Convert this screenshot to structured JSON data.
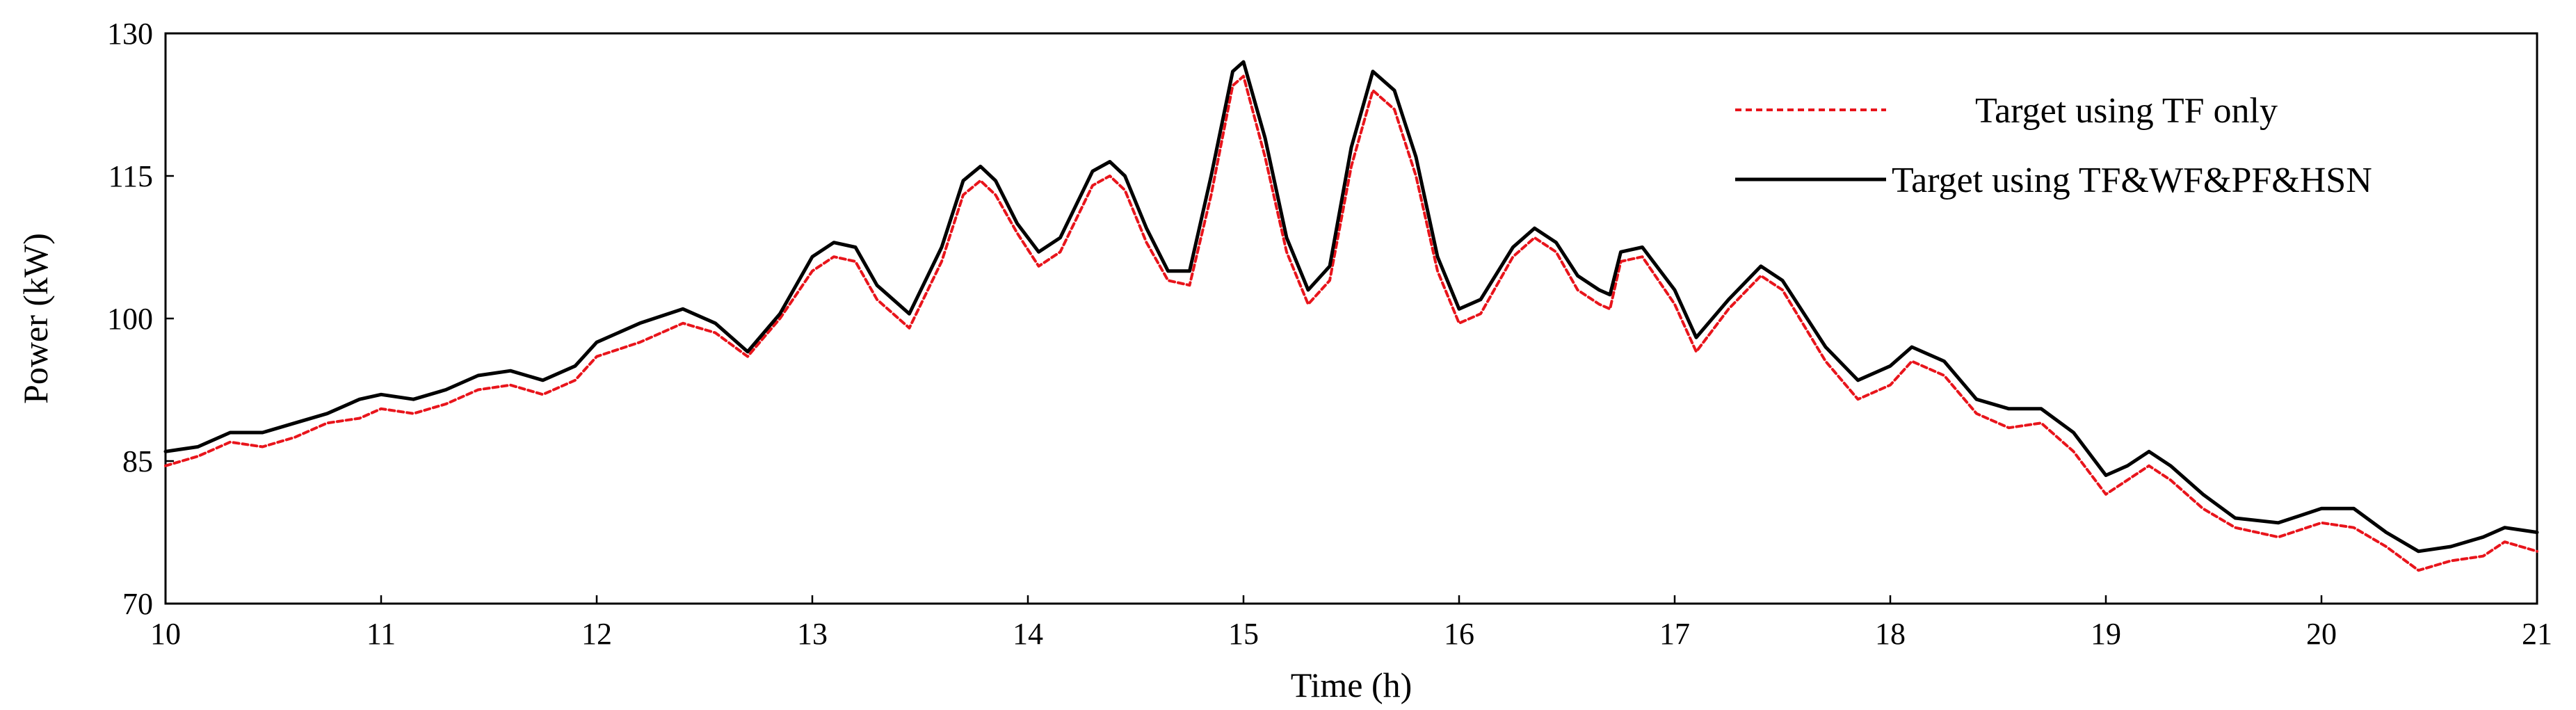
{
  "chart_data": {
    "type": "line",
    "title": "",
    "xlabel": "Time (h)",
    "ylabel": "Power (kW)",
    "xlim": [
      10,
      21
    ],
    "ylim": [
      70,
      130
    ],
    "xticks": [
      10,
      11,
      12,
      13,
      14,
      15,
      16,
      17,
      18,
      19,
      20,
      21
    ],
    "yticks": [
      70,
      85,
      100,
      115,
      130
    ],
    "grid": false,
    "legend_position": "top-right",
    "series": [
      {
        "name": "Target using TF only",
        "color": "#e8141b",
        "style": "dotted",
        "points": [
          [
            10.0,
            84.5
          ],
          [
            10.15,
            85.5
          ],
          [
            10.3,
            87.0
          ],
          [
            10.45,
            86.5
          ],
          [
            10.6,
            87.5
          ],
          [
            10.75,
            89.0
          ],
          [
            10.9,
            89.5
          ],
          [
            11.0,
            90.5
          ],
          [
            11.15,
            90.0
          ],
          [
            11.3,
            91.0
          ],
          [
            11.45,
            92.5
          ],
          [
            11.6,
            93.0
          ],
          [
            11.75,
            92.0
          ],
          [
            11.9,
            93.5
          ],
          [
            12.0,
            96.0
          ],
          [
            12.2,
            97.5
          ],
          [
            12.4,
            99.5
          ],
          [
            12.55,
            98.5
          ],
          [
            12.7,
            96.0
          ],
          [
            12.85,
            100.0
          ],
          [
            13.0,
            105.0
          ],
          [
            13.1,
            106.5
          ],
          [
            13.2,
            106.0
          ],
          [
            13.3,
            102.0
          ],
          [
            13.45,
            99.0
          ],
          [
            13.6,
            106.0
          ],
          [
            13.7,
            113.0
          ],
          [
            13.78,
            114.5
          ],
          [
            13.85,
            113.0
          ],
          [
            13.95,
            109.0
          ],
          [
            14.05,
            105.5
          ],
          [
            14.15,
            107.0
          ],
          [
            14.3,
            114.0
          ],
          [
            14.38,
            115.0
          ],
          [
            14.45,
            113.5
          ],
          [
            14.55,
            108.0
          ],
          [
            14.65,
            104.0
          ],
          [
            14.75,
            103.5
          ],
          [
            14.85,
            113.0
          ],
          [
            14.95,
            124.5
          ],
          [
            15.0,
            125.5
          ],
          [
            15.1,
            117.0
          ],
          [
            15.2,
            107.0
          ],
          [
            15.3,
            101.5
          ],
          [
            15.4,
            104.0
          ],
          [
            15.5,
            116.0
          ],
          [
            15.6,
            124.0
          ],
          [
            15.7,
            122.0
          ],
          [
            15.8,
            115.0
          ],
          [
            15.9,
            105.0
          ],
          [
            16.0,
            99.5
          ],
          [
            16.1,
            100.5
          ],
          [
            16.25,
            106.5
          ],
          [
            16.35,
            108.5
          ],
          [
            16.45,
            107.0
          ],
          [
            16.55,
            103.0
          ],
          [
            16.65,
            101.5
          ],
          [
            16.7,
            101.0
          ],
          [
            16.75,
            106.0
          ],
          [
            16.85,
            106.5
          ],
          [
            17.0,
            101.5
          ],
          [
            17.1,
            96.5
          ],
          [
            17.25,
            101.0
          ],
          [
            17.4,
            104.5
          ],
          [
            17.5,
            103.0
          ],
          [
            17.7,
            95.5
          ],
          [
            17.85,
            91.5
          ],
          [
            18.0,
            93.0
          ],
          [
            18.1,
            95.5
          ],
          [
            18.25,
            94.0
          ],
          [
            18.4,
            90.0
          ],
          [
            18.55,
            88.5
          ],
          [
            18.7,
            89.0
          ],
          [
            18.85,
            86.0
          ],
          [
            19.0,
            81.5
          ],
          [
            19.1,
            83.0
          ],
          [
            19.2,
            84.5
          ],
          [
            19.3,
            83.0
          ],
          [
            19.45,
            80.0
          ],
          [
            19.6,
            78.0
          ],
          [
            19.8,
            77.0
          ],
          [
            20.0,
            78.5
          ],
          [
            20.15,
            78.0
          ],
          [
            20.3,
            76.0
          ],
          [
            20.45,
            73.5
          ],
          [
            20.6,
            74.5
          ],
          [
            20.75,
            75.0
          ],
          [
            20.85,
            76.5
          ],
          [
            21.0,
            75.5
          ]
        ]
      },
      {
        "name": "Target using TF&WF&PF&HSN",
        "color": "#000000",
        "style": "solid",
        "points": [
          [
            10.0,
            86.0
          ],
          [
            10.15,
            86.5
          ],
          [
            10.3,
            88.0
          ],
          [
            10.45,
            88.0
          ],
          [
            10.6,
            89.0
          ],
          [
            10.75,
            90.0
          ],
          [
            10.9,
            91.5
          ],
          [
            11.0,
            92.0
          ],
          [
            11.15,
            91.5
          ],
          [
            11.3,
            92.5
          ],
          [
            11.45,
            94.0
          ],
          [
            11.6,
            94.5
          ],
          [
            11.75,
            93.5
          ],
          [
            11.9,
            95.0
          ],
          [
            12.0,
            97.5
          ],
          [
            12.2,
            99.5
          ],
          [
            12.4,
            101.0
          ],
          [
            12.55,
            99.5
          ],
          [
            12.7,
            96.5
          ],
          [
            12.85,
            100.5
          ],
          [
            13.0,
            106.5
          ],
          [
            13.1,
            108.0
          ],
          [
            13.2,
            107.5
          ],
          [
            13.3,
            103.5
          ],
          [
            13.45,
            100.5
          ],
          [
            13.6,
            107.5
          ],
          [
            13.7,
            114.5
          ],
          [
            13.78,
            116.0
          ],
          [
            13.85,
            114.5
          ],
          [
            13.95,
            110.0
          ],
          [
            14.05,
            107.0
          ],
          [
            14.15,
            108.5
          ],
          [
            14.3,
            115.5
          ],
          [
            14.38,
            116.5
          ],
          [
            14.45,
            115.0
          ],
          [
            14.55,
            109.5
          ],
          [
            14.65,
            105.0
          ],
          [
            14.75,
            105.0
          ],
          [
            14.85,
            115.0
          ],
          [
            14.95,
            126.0
          ],
          [
            15.0,
            127.0
          ],
          [
            15.1,
            119.0
          ],
          [
            15.2,
            108.5
          ],
          [
            15.3,
            103.0
          ],
          [
            15.4,
            105.5
          ],
          [
            15.5,
            118.0
          ],
          [
            15.6,
            126.0
          ],
          [
            15.7,
            124.0
          ],
          [
            15.8,
            117.0
          ],
          [
            15.9,
            106.5
          ],
          [
            16.0,
            101.0
          ],
          [
            16.1,
            102.0
          ],
          [
            16.25,
            107.5
          ],
          [
            16.35,
            109.5
          ],
          [
            16.45,
            108.0
          ],
          [
            16.55,
            104.5
          ],
          [
            16.65,
            103.0
          ],
          [
            16.7,
            102.5
          ],
          [
            16.75,
            107.0
          ],
          [
            16.85,
            107.5
          ],
          [
            17.0,
            103.0
          ],
          [
            17.1,
            98.0
          ],
          [
            17.25,
            102.0
          ],
          [
            17.4,
            105.5
          ],
          [
            17.5,
            104.0
          ],
          [
            17.7,
            97.0
          ],
          [
            17.85,
            93.5
          ],
          [
            18.0,
            95.0
          ],
          [
            18.1,
            97.0
          ],
          [
            18.25,
            95.5
          ],
          [
            18.4,
            91.5
          ],
          [
            18.55,
            90.5
          ],
          [
            18.7,
            90.5
          ],
          [
            18.85,
            88.0
          ],
          [
            19.0,
            83.5
          ],
          [
            19.1,
            84.5
          ],
          [
            19.2,
            86.0
          ],
          [
            19.3,
            84.5
          ],
          [
            19.45,
            81.5
          ],
          [
            19.6,
            79.0
          ],
          [
            19.8,
            78.5
          ],
          [
            20.0,
            80.0
          ],
          [
            20.15,
            80.0
          ],
          [
            20.3,
            77.5
          ],
          [
            20.45,
            75.5
          ],
          [
            20.6,
            76.0
          ],
          [
            20.75,
            77.0
          ],
          [
            20.85,
            78.0
          ],
          [
            21.0,
            77.5
          ]
        ]
      }
    ]
  }
}
